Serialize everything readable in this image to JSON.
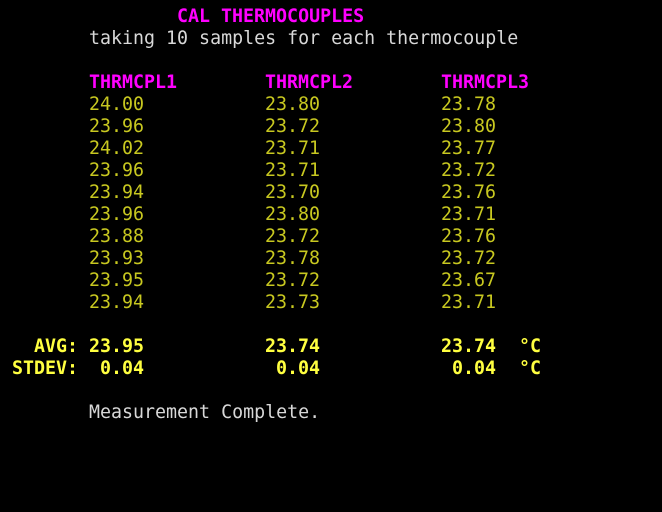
{
  "title": "CAL THERMOCOUPLES",
  "subtitle": "taking 10 samples for each thermocouple",
  "columns": [
    "THRMCPL1",
    "THRMCPL2",
    "THRMCPL3"
  ],
  "rows": [
    [
      "24.00",
      "23.80",
      "23.78"
    ],
    [
      "23.96",
      "23.72",
      "23.80"
    ],
    [
      "24.02",
      "23.71",
      "23.77"
    ],
    [
      "23.96",
      "23.71",
      "23.72"
    ],
    [
      "23.94",
      "23.70",
      "23.76"
    ],
    [
      "23.96",
      "23.80",
      "23.71"
    ],
    [
      "23.88",
      "23.72",
      "23.76"
    ],
    [
      "23.93",
      "23.78",
      "23.72"
    ],
    [
      "23.95",
      "23.72",
      "23.67"
    ],
    [
      "23.94",
      "23.73",
      "23.71"
    ]
  ],
  "avg": {
    "label": "AVG:",
    "values": [
      "23.95",
      "23.74",
      "23.74"
    ],
    "unit": "°C"
  },
  "stdev": {
    "label": "STDEV:",
    "values": [
      "0.04",
      "0.04",
      "0.04"
    ],
    "unit": "°C"
  },
  "status": "Measurement Complete.",
  "colors": {
    "background": "#000000",
    "header": "#ff00ff",
    "value": "#c8c820",
    "summary": "#ffff40",
    "text": "#d8d8d8"
  }
}
